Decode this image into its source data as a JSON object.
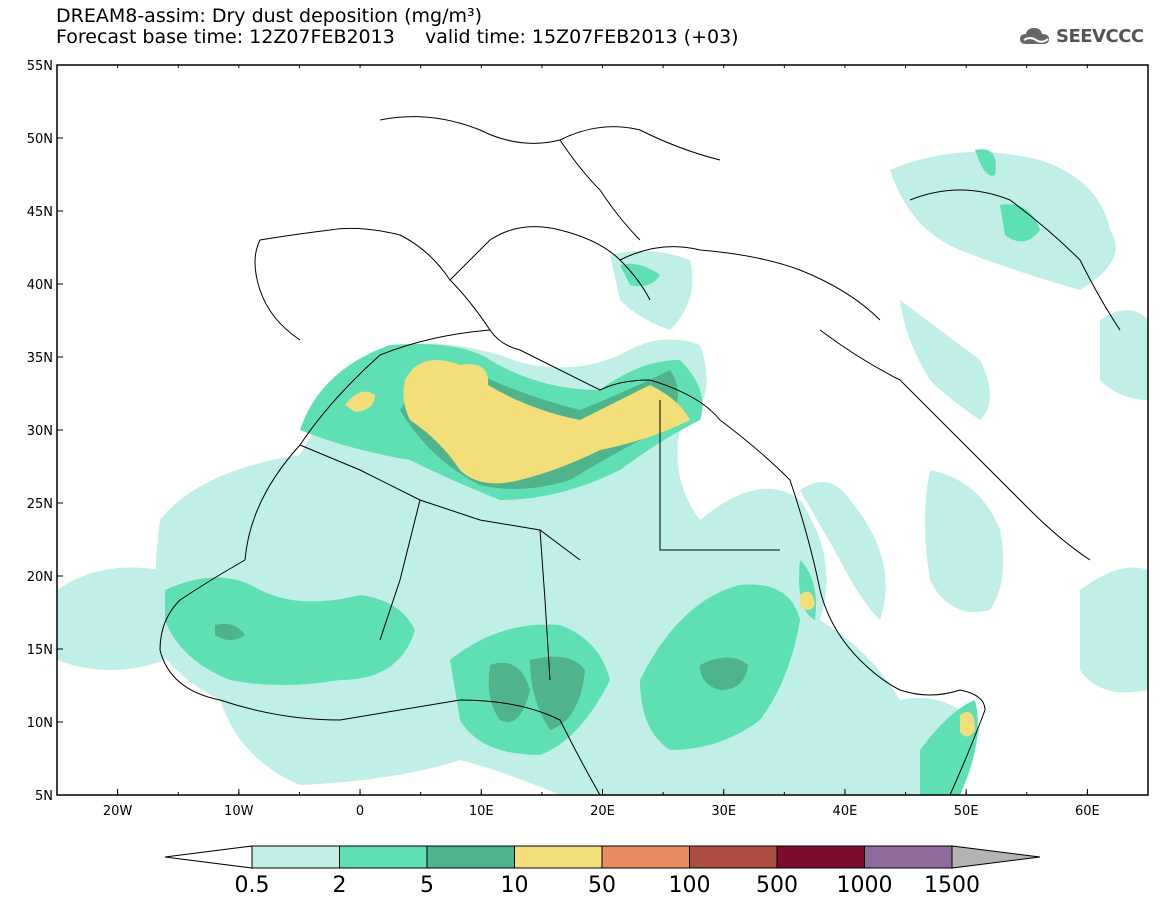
{
  "title": {
    "line1": "DREAM8-assim: Dry dust deposition (mg/m³)",
    "line2": "Forecast base time: 12Z07FEB2013     valid time: 15Z07FEB2013 (+03)"
  },
  "logo": {
    "text": "SEEVCCC",
    "icon": "cloud-icon"
  },
  "axes": {
    "lat_labels": [
      "55N",
      "50N",
      "45N",
      "40N",
      "35N",
      "30N",
      "25N",
      "20N",
      "15N",
      "10N",
      "5N"
    ],
    "lon_labels": [
      "20W",
      "10W",
      "0",
      "10E",
      "20E",
      "30E",
      "40E",
      "50E",
      "60E"
    ],
    "lat_range": [
      5,
      55
    ],
    "lon_range": [
      -25,
      65
    ]
  },
  "legend": {
    "levels": [
      "0.5",
      "2",
      "5",
      "10",
      "50",
      "100",
      "500",
      "1000",
      "1500"
    ],
    "colors": [
      "#bfefe6",
      "#5fdfb4",
      "#4fb48c",
      "#f3df79",
      "#e88c62",
      "#ad4e40",
      "#7d0b2b",
      "#8e6b9d",
      "#b4b4b4"
    ],
    "below_color": "#ffffff"
  }
}
